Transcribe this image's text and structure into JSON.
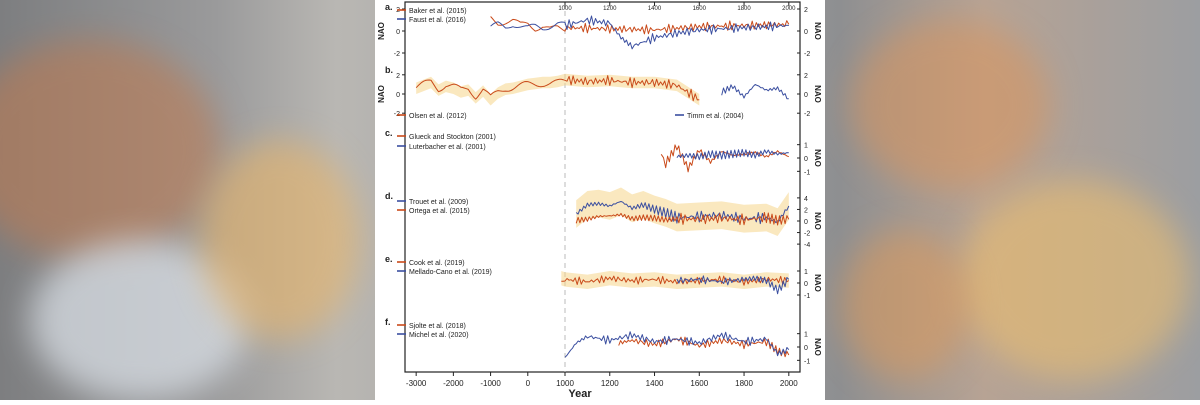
{
  "figure": {
    "xlabel": "Year",
    "x_ticks": [
      "-3000",
      "-2000",
      "-1000",
      "0",
      "1000",
      "1200",
      "1400",
      "1600",
      "1800",
      "2000"
    ],
    "top_ticks": [
      "1000",
      "1200",
      "1400",
      "1600",
      "1800",
      "2000"
    ],
    "y_axis_label": "NAO"
  },
  "panels": [
    {
      "id": "a",
      "label": "a.",
      "legend": [
        {
          "name": "Baker et al. (2015)",
          "color": "#c94a1a"
        },
        {
          "name": "Faust et al. (2016)",
          "color": "#3b4fa0"
        }
      ],
      "ticks_left": [
        "2",
        "0",
        "-2"
      ],
      "ticks_right": [
        "2",
        "0",
        "-2"
      ]
    },
    {
      "id": "b",
      "label": "b.",
      "legend": [
        {
          "name": "Olsen et al. (2012)",
          "color": "#c94a1a"
        },
        {
          "name": "Timm et al. (2004)",
          "color": "#3b4fa0"
        }
      ],
      "ticks_left": [
        "2",
        "0",
        "-2"
      ],
      "ticks_right": [
        "2",
        "0",
        "-2"
      ]
    },
    {
      "id": "c",
      "label": "c.",
      "legend": [
        {
          "name": "Glueck and Stockton (2001)",
          "color": "#c94a1a"
        },
        {
          "name": "Luterbacher et al. (2001)",
          "color": "#3b4fa0"
        }
      ],
      "ticks_right": [
        "1",
        "0",
        "-1"
      ]
    },
    {
      "id": "d",
      "label": "d.",
      "legend": [
        {
          "name": "Trouet et al. (2009)",
          "color": "#3b4fa0"
        },
        {
          "name": "Ortega et al. (2015)",
          "color": "#c94a1a"
        }
      ],
      "ticks_right": [
        "4",
        "2",
        "0",
        "-2",
        "-4"
      ]
    },
    {
      "id": "e",
      "label": "e.",
      "legend": [
        {
          "name": "Cook et al. (2019)",
          "color": "#c94a1a"
        },
        {
          "name": "Mellado-Cano et al. (2019)",
          "color": "#3b4fa0"
        }
      ],
      "ticks_right": [
        "1",
        "0",
        "-1"
      ]
    },
    {
      "id": "f",
      "label": "f.",
      "legend": [
        {
          "name": "Sjolte et al. (2018)",
          "color": "#c94a1a"
        },
        {
          "name": "Michel et al. (2020)",
          "color": "#3b4fa0"
        }
      ],
      "ticks_right": [
        "1",
        "0",
        "-1"
      ]
    }
  ],
  "chart_data": {
    "type": "line",
    "xlabel": "Year",
    "ylabel": "NAO",
    "xlim": [
      -3300,
      2050
    ],
    "axis_break": "compressed scale before 1000, expanded scale 1000-2000",
    "dashed_reference_line_at": 1000,
    "panels": [
      {
        "label": "a.",
        "ylim": [
          -2,
          2
        ],
        "series": [
          {
            "name": "Baker et al. (2015)",
            "x": [
              -1000,
              -800,
              -600,
              -400,
              -200,
              0,
              200,
              400,
              600,
              800,
              1000,
              1200,
              1400,
              1600,
              1800,
              2000
            ],
            "y": [
              1.0,
              0.6,
              0.8,
              0.9,
              0.5,
              0.7,
              0.3,
              0.5,
              0.2,
              0.4,
              0.3,
              0.2,
              0.1,
              0.4,
              0.5,
              0.6
            ]
          },
          {
            "name": "Faust et al. (2016)",
            "x": [
              -1000,
              -800,
              -600,
              -400,
              -200,
              0,
              200,
              400,
              600,
              800,
              1000,
              1100,
              1200,
              1250,
              1300,
              1400,
              1500,
              1600,
              1700,
              1800,
              1900,
              2000
            ],
            "y": [
              0.2,
              0.4,
              0.1,
              0.5,
              0.3,
              0.1,
              0.3,
              0.2,
              0.4,
              0.6,
              0.5,
              1.0,
              0.7,
              -0.6,
              -1.4,
              -0.6,
              -0.2,
              0.1,
              0.2,
              0.3,
              0.4,
              0.5
            ]
          }
        ]
      },
      {
        "label": "b.",
        "ylim": [
          -2.5,
          2.5
        ],
        "series": [
          {
            "name": "Olsen et al. (2012)",
            "x": [
              -3000,
              -2800,
              -2600,
              -2400,
              -2200,
              -2000,
              -1800,
              -1600,
              -1400,
              -1200,
              -1000,
              -800,
              -600,
              -400,
              -200,
              0,
              200,
              400,
              600,
              800,
              1000,
              1100,
              1200,
              1300,
              1400,
              1500,
              1600
            ],
            "y": [
              0.6,
              0.9,
              1.2,
              0.4,
              0.8,
              0.6,
              0.2,
              0.4,
              -0.4,
              0.3,
              -0.6,
              0.1,
              0.5,
              0.6,
              0.8,
              1.0,
              1.1,
              1.2,
              1.2,
              1.3,
              1.5,
              1.3,
              1.4,
              1.2,
              1.2,
              0.9,
              -0.6
            ]
          },
          {
            "name": "Timm et al. (2004)",
            "x": [
              1700,
              1750,
              1800,
              1850,
              1900,
              1950,
              2000
            ],
            "y": [
              0.2,
              0.8,
              -0.3,
              1.0,
              0.4,
              0.6,
              -0.5
            ]
          }
        ]
      },
      {
        "label": "c.",
        "ylim": [
          -1.5,
          1.5
        ],
        "series": [
          {
            "name": "Glueck and Stockton (2001)",
            "x": [
              1430,
              1450,
              1500,
              1550,
              1600,
              1650,
              1700,
              1750,
              1800,
              1850,
              1900,
              1950,
              2000
            ],
            "y": [
              0.2,
              -0.4,
              0.9,
              -0.8,
              0.6,
              -0.3,
              0.5,
              0.2,
              0.3,
              0.4,
              0.1,
              0.5,
              0.1
            ]
          },
          {
            "name": "Luterbacher et al. (2001)",
            "x": [
              1500,
              1550,
              1600,
              1650,
              1700,
              1750,
              1800,
              1850,
              1900,
              1950,
              2000
            ],
            "y": [
              0.1,
              0.2,
              0.1,
              0.3,
              0.2,
              0.3,
              0.4,
              0.2,
              0.5,
              0.3,
              0.4
            ]
          }
        ]
      },
      {
        "label": "d.",
        "ylim": [
          -4.5,
          4.5
        ],
        "series": [
          {
            "name": "Trouet et al. (2009)",
            "x": [
              1050,
              1100,
              1150,
              1200,
              1250,
              1300,
              1350,
              1400,
              1450,
              1500,
              1600,
              1700,
              1800,
              1900,
              1950,
              2000
            ],
            "y": [
              1.2,
              2.8,
              3.0,
              2.6,
              3.4,
              2.2,
              2.8,
              2.0,
              1.4,
              0.6,
              0.8,
              1.0,
              0.4,
              0.6,
              -0.2,
              2.6
            ]
          },
          {
            "name": "Ortega et al. (2015)",
            "x": [
              1050,
              1100,
              1150,
              1200,
              1250,
              1300,
              1350,
              1400,
              1450,
              1500,
              1600,
              1700,
              1800,
              1900,
              1950,
              2000
            ],
            "y": [
              0.1,
              0.3,
              0.8,
              0.9,
              1.1,
              0.4,
              0.6,
              0.5,
              0.2,
              0.4,
              0.3,
              0.5,
              0.2,
              0.6,
              0.1,
              0.3
            ]
          }
        ]
      },
      {
        "label": "e.",
        "ylim": [
          -1.5,
          1.5
        ],
        "series": [
          {
            "name": "Cook et al. (2019)",
            "x": [
              900,
              1000,
              1100,
              1200,
              1300,
              1400,
              1500,
              1600,
              1700,
              1800,
              1900,
              2000
            ],
            "y": [
              0.4,
              0.3,
              0.1,
              0.4,
              0.2,
              0.3,
              0.1,
              0.2,
              0.3,
              0.1,
              0.3,
              0.2
            ]
          },
          {
            "name": "Mellado-Cano et al. (2019)",
            "x": [
              1500,
              1600,
              1700,
              1800,
              1850,
              1900,
              1950,
              2000
            ],
            "y": [
              0.2,
              0.3,
              0.1,
              0.3,
              0.4,
              0.2,
              -0.6,
              0.3
            ]
          }
        ]
      },
      {
        "label": "f.",
        "ylim": [
          -1.5,
          1.5
        ],
        "series": [
          {
            "name": "Sjolte et al. (2018)",
            "x": [
              1240,
              1300,
              1400,
              1500,
              1600,
              1700,
              1800,
              1900,
              1950,
              2000
            ],
            "y": [
              0.3,
              0.5,
              0.2,
              0.6,
              0.1,
              0.5,
              0.2,
              0.4,
              -0.3,
              -0.6
            ]
          },
          {
            "name": "Michel et al. (2020)",
            "x": [
              1000,
              1050,
              1100,
              1200,
              1300,
              1400,
              1500,
              1600,
              1700,
              1800,
              1900,
              1950,
              2000
            ],
            "y": [
              -0.8,
              0.3,
              0.8,
              0.5,
              0.9,
              0.4,
              0.6,
              0.3,
              0.9,
              0.4,
              0.6,
              -0.5,
              -0.2
            ]
          }
        ]
      }
    ]
  }
}
